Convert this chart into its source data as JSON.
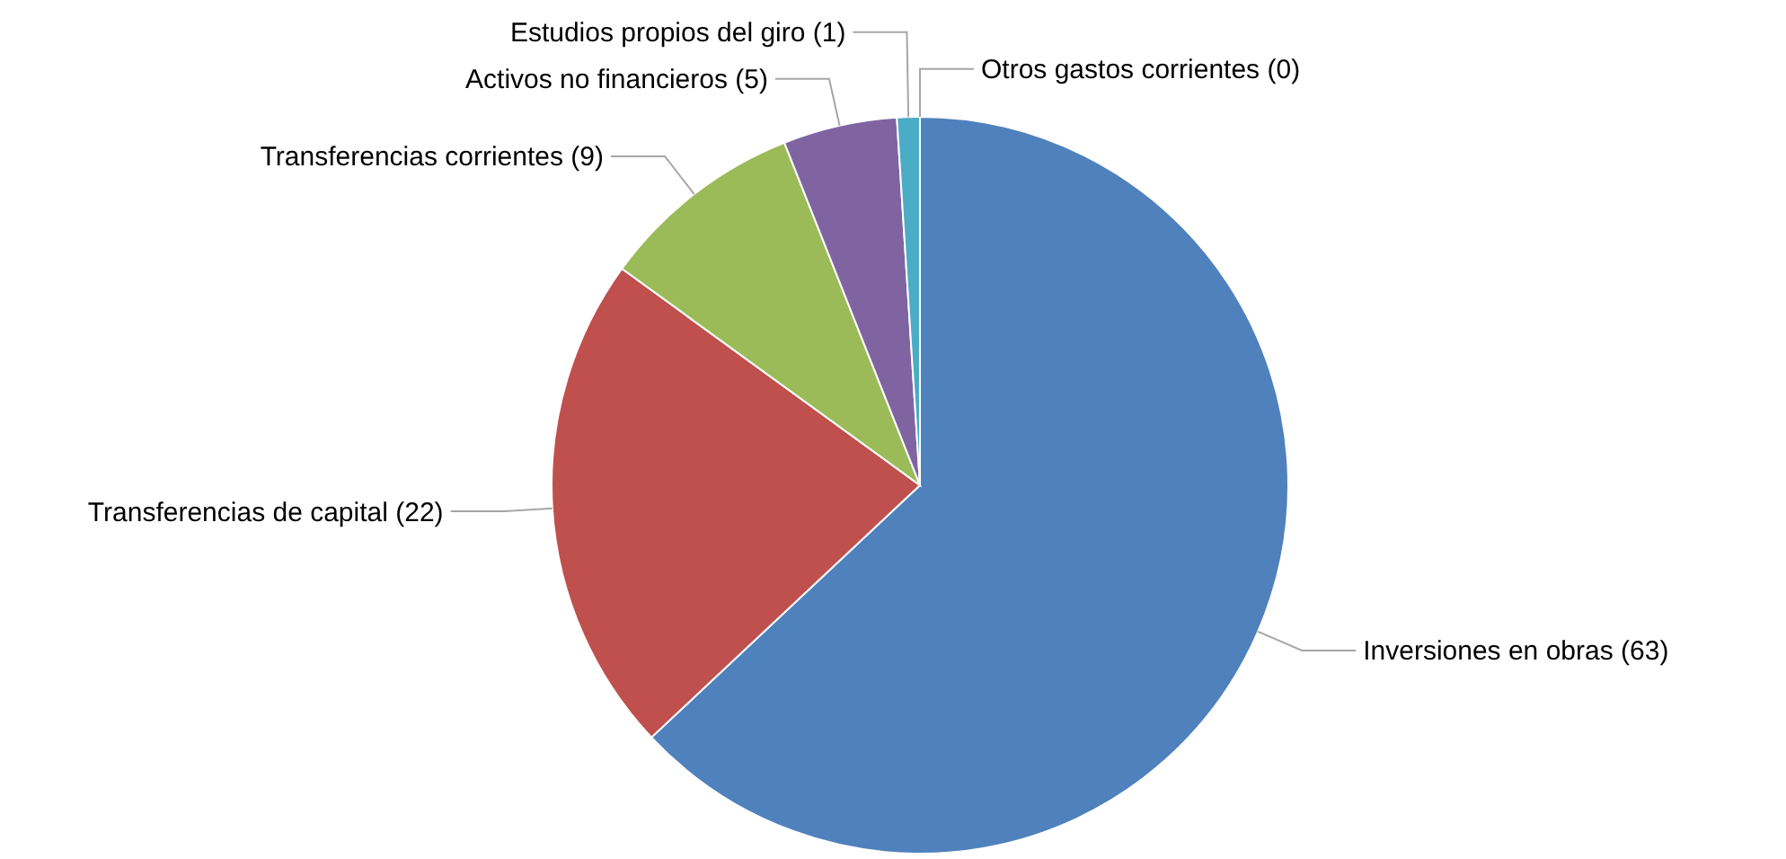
{
  "chart_data": {
    "type": "pie",
    "categories": [
      "Inversiones en obras (63)",
      "Transferencias de capital (22)",
      "Transferencias corrientes (9)",
      "Activos no financieros (5)",
      "Estudios propios del giro (1)",
      "Otros gastos corrientes (0)"
    ],
    "values": [
      63,
      22,
      9,
      5,
      1,
      0
    ],
    "colors": [
      "#4f81bd",
      "#c0504d",
      "#9bbb59",
      "#8064a2",
      "#4bacc6",
      "#f79646"
    ]
  }
}
